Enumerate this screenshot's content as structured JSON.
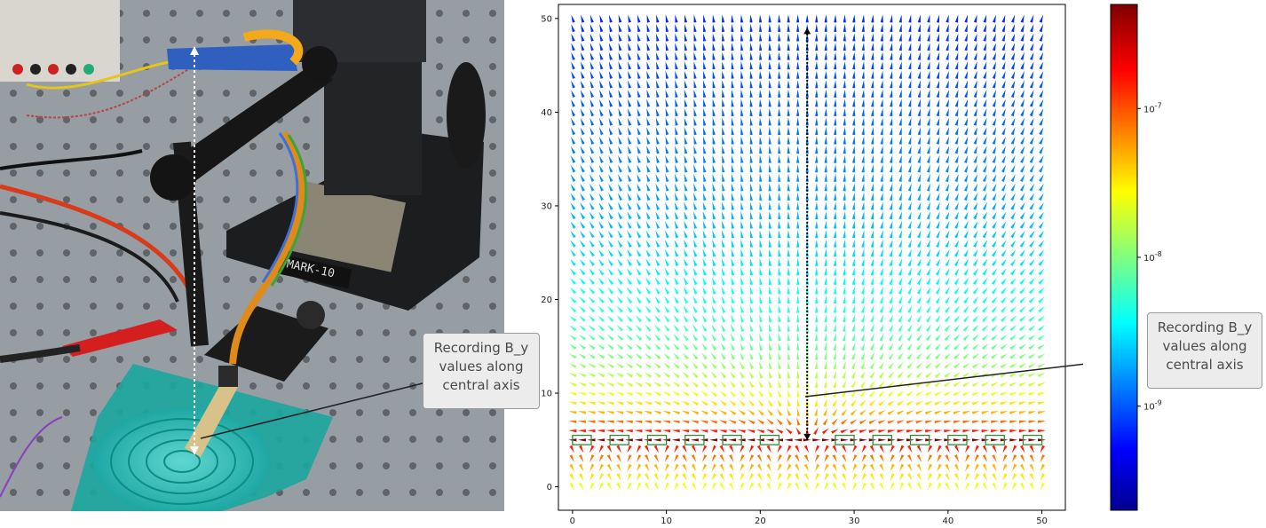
{
  "photo": {
    "device_label": "MARK-10"
  },
  "callouts": {
    "left": "Recording B_y values along central axis",
    "right": "Recording B_y values along central axis"
  },
  "chart_data": {
    "type": "quiver",
    "title": "",
    "xlabel": "",
    "ylabel": "",
    "xlim": [
      -1.5,
      52.5
    ],
    "ylim": [
      -2.5,
      51.5
    ],
    "xticks": [
      0,
      10,
      20,
      30,
      40,
      50
    ],
    "yticks": [
      0,
      10,
      20,
      30,
      40,
      50
    ],
    "grid_spacing": 1,
    "grid_range": [
      0,
      50
    ],
    "colormap": "jet",
    "colorbar": {
      "scale": "log",
      "range": [
        2e-10,
        5e-07
      ],
      "tick_labels": [
        "10^-7",
        "10^-8",
        "10^-9"
      ],
      "tick_values": [
        1e-07,
        1e-08,
        1e-09
      ]
    },
    "central_axis_arrow": {
      "x": 25,
      "y_from": 5,
      "y_to": 49
    },
    "coil_row": {
      "y": 5,
      "left_centers": [
        1,
        5,
        9,
        13,
        17,
        21
      ],
      "right_centers": [
        29,
        33,
        37,
        41,
        45,
        49
      ],
      "color": "#2e8b3a"
    }
  },
  "colors": {
    "coil_outline": "#2e8b3a",
    "callout_bg": "#ececec"
  }
}
